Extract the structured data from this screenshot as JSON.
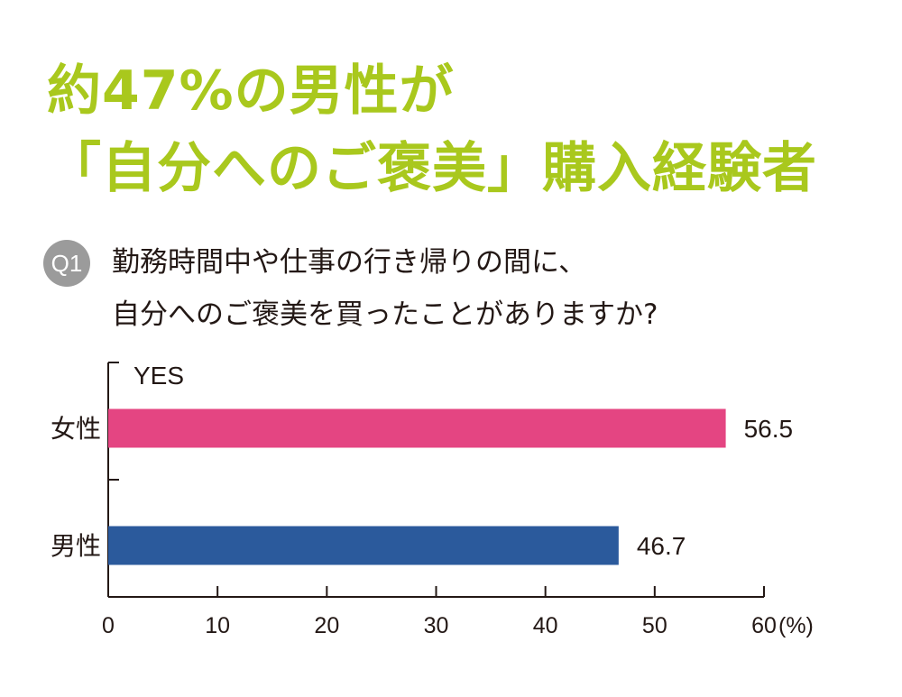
{
  "headline": {
    "line1": "約47%の男性が",
    "line2": "「自分へのご褒美」購入経験者"
  },
  "question": {
    "badge": "Q1",
    "line1": "勤務時間中や仕事の行き帰りの間に、",
    "line2": "自分へのご褒美を買ったことがありますか?"
  },
  "colors": {
    "headline": "#a9c81d",
    "female_bar": "#e44582",
    "male_bar": "#2b5a9c",
    "badge": "#9b9b9b"
  },
  "chart_data": {
    "type": "bar",
    "orientation": "horizontal",
    "categories": [
      "女性",
      "男性"
    ],
    "series": [
      {
        "name": "YES",
        "values": [
          56.5,
          46.7
        ],
        "colors": [
          "#e44582",
          "#2b5a9c"
        ]
      }
    ],
    "value_labels": [
      "56.5",
      "46.7"
    ],
    "xlim": [
      0,
      60
    ],
    "xticks": [
      "0",
      "10",
      "20",
      "30",
      "40",
      "50",
      "60"
    ],
    "unit": "(%)",
    "grid": false
  }
}
